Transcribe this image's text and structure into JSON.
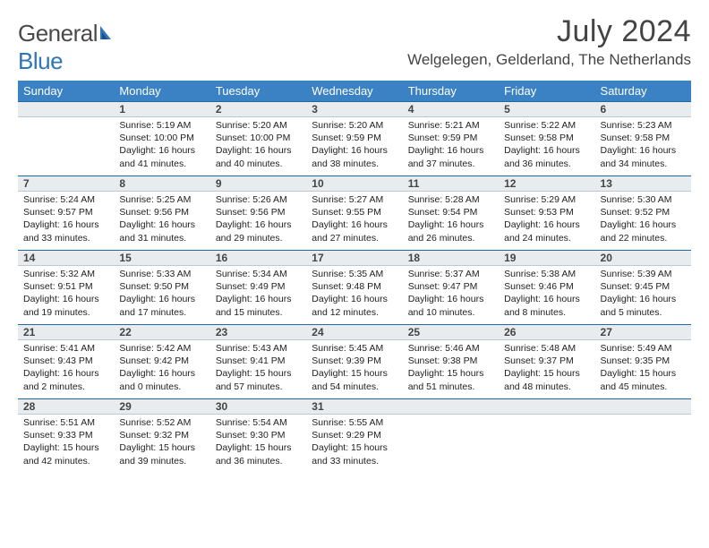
{
  "brand": {
    "word1": "General",
    "word2": "Blue"
  },
  "title": "July 2024",
  "location": "Welgelegen, Gelderland, The Netherlands",
  "colors": {
    "header_bg": "#3b82c4",
    "header_text": "#ffffff",
    "daynum_bg": "#e8ecef",
    "daynum_border_top": "#1f6aa5",
    "daynum_border_bottom": "#b8cad8",
    "text": "#222222",
    "brand_gray": "#4a4a4a",
    "brand_blue": "#2f76b9"
  },
  "typography": {
    "title_fontsize": 34,
    "location_fontsize": 17,
    "weekday_fontsize": 13,
    "daynum_fontsize": 12,
    "info_fontsize": 10.5
  },
  "weekdays": [
    "Sunday",
    "Monday",
    "Tuesday",
    "Wednesday",
    "Thursday",
    "Friday",
    "Saturday"
  ],
  "weeks": [
    {
      "nums": [
        "",
        "1",
        "2",
        "3",
        "4",
        "5",
        "6"
      ],
      "info": [
        null,
        {
          "sunrise": "Sunrise: 5:19 AM",
          "sunset": "Sunset: 10:00 PM",
          "day1": "Daylight: 16 hours",
          "day2": "and 41 minutes."
        },
        {
          "sunrise": "Sunrise: 5:20 AM",
          "sunset": "Sunset: 10:00 PM",
          "day1": "Daylight: 16 hours",
          "day2": "and 40 minutes."
        },
        {
          "sunrise": "Sunrise: 5:20 AM",
          "sunset": "Sunset: 9:59 PM",
          "day1": "Daylight: 16 hours",
          "day2": "and 38 minutes."
        },
        {
          "sunrise": "Sunrise: 5:21 AM",
          "sunset": "Sunset: 9:59 PM",
          "day1": "Daylight: 16 hours",
          "day2": "and 37 minutes."
        },
        {
          "sunrise": "Sunrise: 5:22 AM",
          "sunset": "Sunset: 9:58 PM",
          "day1": "Daylight: 16 hours",
          "day2": "and 36 minutes."
        },
        {
          "sunrise": "Sunrise: 5:23 AM",
          "sunset": "Sunset: 9:58 PM",
          "day1": "Daylight: 16 hours",
          "day2": "and 34 minutes."
        }
      ]
    },
    {
      "nums": [
        "7",
        "8",
        "9",
        "10",
        "11",
        "12",
        "13"
      ],
      "info": [
        {
          "sunrise": "Sunrise: 5:24 AM",
          "sunset": "Sunset: 9:57 PM",
          "day1": "Daylight: 16 hours",
          "day2": "and 33 minutes."
        },
        {
          "sunrise": "Sunrise: 5:25 AM",
          "sunset": "Sunset: 9:56 PM",
          "day1": "Daylight: 16 hours",
          "day2": "and 31 minutes."
        },
        {
          "sunrise": "Sunrise: 5:26 AM",
          "sunset": "Sunset: 9:56 PM",
          "day1": "Daylight: 16 hours",
          "day2": "and 29 minutes."
        },
        {
          "sunrise": "Sunrise: 5:27 AM",
          "sunset": "Sunset: 9:55 PM",
          "day1": "Daylight: 16 hours",
          "day2": "and 27 minutes."
        },
        {
          "sunrise": "Sunrise: 5:28 AM",
          "sunset": "Sunset: 9:54 PM",
          "day1": "Daylight: 16 hours",
          "day2": "and 26 minutes."
        },
        {
          "sunrise": "Sunrise: 5:29 AM",
          "sunset": "Sunset: 9:53 PM",
          "day1": "Daylight: 16 hours",
          "day2": "and 24 minutes."
        },
        {
          "sunrise": "Sunrise: 5:30 AM",
          "sunset": "Sunset: 9:52 PM",
          "day1": "Daylight: 16 hours",
          "day2": "and 22 minutes."
        }
      ]
    },
    {
      "nums": [
        "14",
        "15",
        "16",
        "17",
        "18",
        "19",
        "20"
      ],
      "info": [
        {
          "sunrise": "Sunrise: 5:32 AM",
          "sunset": "Sunset: 9:51 PM",
          "day1": "Daylight: 16 hours",
          "day2": "and 19 minutes."
        },
        {
          "sunrise": "Sunrise: 5:33 AM",
          "sunset": "Sunset: 9:50 PM",
          "day1": "Daylight: 16 hours",
          "day2": "and 17 minutes."
        },
        {
          "sunrise": "Sunrise: 5:34 AM",
          "sunset": "Sunset: 9:49 PM",
          "day1": "Daylight: 16 hours",
          "day2": "and 15 minutes."
        },
        {
          "sunrise": "Sunrise: 5:35 AM",
          "sunset": "Sunset: 9:48 PM",
          "day1": "Daylight: 16 hours",
          "day2": "and 12 minutes."
        },
        {
          "sunrise": "Sunrise: 5:37 AM",
          "sunset": "Sunset: 9:47 PM",
          "day1": "Daylight: 16 hours",
          "day2": "and 10 minutes."
        },
        {
          "sunrise": "Sunrise: 5:38 AM",
          "sunset": "Sunset: 9:46 PM",
          "day1": "Daylight: 16 hours",
          "day2": "and 8 minutes."
        },
        {
          "sunrise": "Sunrise: 5:39 AM",
          "sunset": "Sunset: 9:45 PM",
          "day1": "Daylight: 16 hours",
          "day2": "and 5 minutes."
        }
      ]
    },
    {
      "nums": [
        "21",
        "22",
        "23",
        "24",
        "25",
        "26",
        "27"
      ],
      "info": [
        {
          "sunrise": "Sunrise: 5:41 AM",
          "sunset": "Sunset: 9:43 PM",
          "day1": "Daylight: 16 hours",
          "day2": "and 2 minutes."
        },
        {
          "sunrise": "Sunrise: 5:42 AM",
          "sunset": "Sunset: 9:42 PM",
          "day1": "Daylight: 16 hours",
          "day2": "and 0 minutes."
        },
        {
          "sunrise": "Sunrise: 5:43 AM",
          "sunset": "Sunset: 9:41 PM",
          "day1": "Daylight: 15 hours",
          "day2": "and 57 minutes."
        },
        {
          "sunrise": "Sunrise: 5:45 AM",
          "sunset": "Sunset: 9:39 PM",
          "day1": "Daylight: 15 hours",
          "day2": "and 54 minutes."
        },
        {
          "sunrise": "Sunrise: 5:46 AM",
          "sunset": "Sunset: 9:38 PM",
          "day1": "Daylight: 15 hours",
          "day2": "and 51 minutes."
        },
        {
          "sunrise": "Sunrise: 5:48 AM",
          "sunset": "Sunset: 9:37 PM",
          "day1": "Daylight: 15 hours",
          "day2": "and 48 minutes."
        },
        {
          "sunrise": "Sunrise: 5:49 AM",
          "sunset": "Sunset: 9:35 PM",
          "day1": "Daylight: 15 hours",
          "day2": "and 45 minutes."
        }
      ]
    },
    {
      "nums": [
        "28",
        "29",
        "30",
        "31",
        "",
        "",
        ""
      ],
      "info": [
        {
          "sunrise": "Sunrise: 5:51 AM",
          "sunset": "Sunset: 9:33 PM",
          "day1": "Daylight: 15 hours",
          "day2": "and 42 minutes."
        },
        {
          "sunrise": "Sunrise: 5:52 AM",
          "sunset": "Sunset: 9:32 PM",
          "day1": "Daylight: 15 hours",
          "day2": "and 39 minutes."
        },
        {
          "sunrise": "Sunrise: 5:54 AM",
          "sunset": "Sunset: 9:30 PM",
          "day1": "Daylight: 15 hours",
          "day2": "and 36 minutes."
        },
        {
          "sunrise": "Sunrise: 5:55 AM",
          "sunset": "Sunset: 9:29 PM",
          "day1": "Daylight: 15 hours",
          "day2": "and 33 minutes."
        },
        null,
        null,
        null
      ]
    }
  ]
}
